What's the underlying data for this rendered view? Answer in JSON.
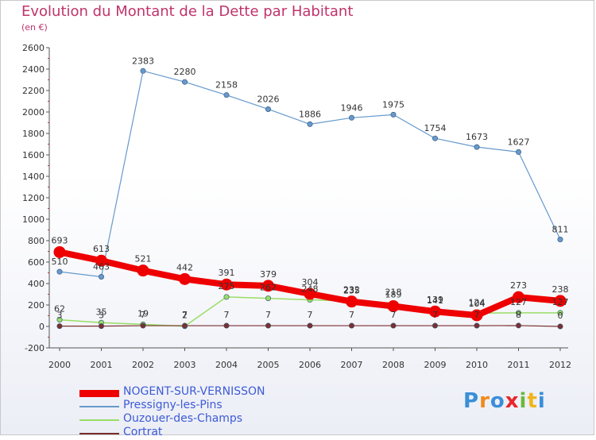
{
  "title": "Evolution du Montant de la Dette par Habitant",
  "unit": "(en €)",
  "logo": {
    "letters": [
      "P",
      "r",
      "o",
      "x",
      "i",
      "t",
      "i"
    ],
    "colors": [
      "#3a8fd8",
      "#f08a1c",
      "#3a8fd8",
      "#e8262a",
      "#6bb83a",
      "#f0b51c",
      "#3a8fd8"
    ]
  },
  "chart_data": {
    "type": "line",
    "x": [
      "2000",
      "2001",
      "2002",
      "2003",
      "2004",
      "2005",
      "2006",
      "2007",
      "2008",
      "2009",
      "2010",
      "2011",
      "2012"
    ],
    "ylim": [
      -200,
      2600
    ],
    "yticks": [
      "-200",
      "0",
      "200",
      "400",
      "600",
      "800",
      "1000",
      "1200",
      "1400",
      "1600",
      "1800",
      "2000",
      "2200",
      "2400",
      "2600"
    ],
    "grid": false,
    "series": [
      {
        "name": "NOGENT-SUR-VERNISSON",
        "color": "#ee0000",
        "width": 8,
        "values": [
          693,
          613,
          521,
          442,
          391,
          379,
          304,
          232,
          189,
          139,
          104,
          273,
          238
        ]
      },
      {
        "name": "Pressigny-les-Pins",
        "color": "#6699cc",
        "width": 1.2,
        "values": [
          510,
          463,
          2383,
          2280,
          2158,
          2026,
          1886,
          1946,
          1975,
          1754,
          1673,
          1627,
          811
        ]
      },
      {
        "name": "Ouzouer-des-Champs",
        "color": "#99dd66",
        "width": 1.5,
        "values": [
          62,
          35,
          19,
          2,
          275,
          262,
          248,
          235,
          218,
          141,
          124,
          127,
          127
        ]
      },
      {
        "name": "Cortrat",
        "color": "#7a3030",
        "width": 1.2,
        "values": [
          3,
          3,
          7,
          7,
          7,
          7,
          7,
          7,
          7,
          7,
          7,
          8,
          0
        ]
      }
    ]
  }
}
